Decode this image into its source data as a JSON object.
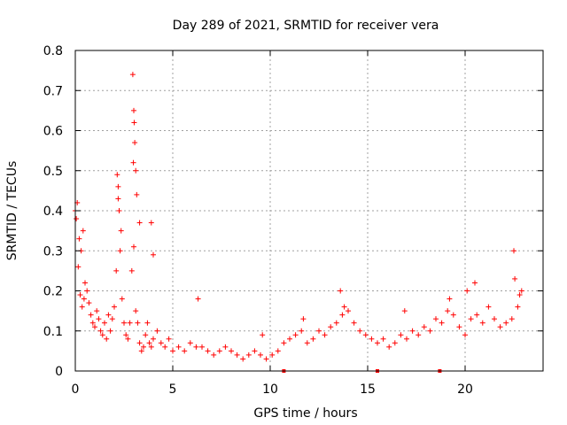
{
  "chart_data": {
    "type": "scatter",
    "title": "Day 289 of 2021, SRMTID for receiver vera",
    "xlabel": "GPS time / hours",
    "ylabel": "SRMTID / TECUs",
    "xlim": [
      0,
      24
    ],
    "ylim": [
      0,
      0.8
    ],
    "xticks": [
      0,
      5,
      10,
      15,
      20
    ],
    "xtick_labels": [
      "0",
      "5",
      "10",
      "15",
      "20"
    ],
    "yticks": [
      0,
      0.1,
      0.2,
      0.3,
      0.4,
      0.5,
      0.6,
      0.7,
      0.8
    ],
    "ytick_labels": [
      "0",
      "0.1",
      "0.2",
      "0.3",
      "0.4",
      "0.5",
      "0.6",
      "0.7",
      "0.8"
    ],
    "grid": true,
    "marker": "+",
    "color": "#ff0000",
    "series": [
      {
        "name": "SRMTID",
        "x": [
          0.0,
          0.1,
          0.2,
          0.3,
          0.4,
          0.5,
          0.6,
          0.7,
          0.8,
          0.9,
          1.0,
          1.1,
          1.2,
          1.3,
          1.4,
          1.5,
          1.6,
          1.7,
          1.8,
          1.9,
          2.0,
          2.1,
          2.2,
          2.3,
          2.4,
          2.5,
          2.6,
          2.7,
          2.8,
          2.9,
          3.0,
          3.1,
          3.2,
          3.3,
          3.4,
          3.5,
          3.6,
          3.7,
          3.8,
          3.9,
          4.0,
          4.2,
          4.4,
          4.6,
          4.8,
          5.0,
          5.3,
          5.6,
          5.9,
          6.2,
          6.5,
          6.8,
          7.1,
          7.4,
          7.7,
          8.0,
          8.3,
          8.6,
          8.9,
          9.2,
          9.5,
          9.8,
          10.1,
          10.4,
          10.7,
          11.0,
          11.3,
          11.6,
          11.9,
          12.2,
          12.5,
          12.8,
          13.1,
          13.4,
          13.7,
          14.0,
          14.3,
          14.6,
          14.9,
          15.2,
          15.5,
          15.8,
          16.1,
          16.4,
          16.7,
          17.0,
          17.3,
          17.6,
          17.9,
          18.2,
          18.5,
          18.8,
          19.1,
          19.4,
          19.7,
          20.0,
          20.3,
          20.6,
          20.9,
          21.2,
          21.5,
          21.8,
          22.1,
          22.4,
          22.7,
          22.9,
          0.05,
          0.15,
          0.25,
          0.35,
          0.45,
          2.15,
          2.2,
          2.25,
          2.35,
          2.95,
          3.0,
          3.05,
          3.1,
          2.98,
          3.02,
          3.15,
          3.3,
          3.9,
          4.0,
          6.3,
          9.6,
          11.7,
          13.6,
          13.8,
          16.9,
          19.2,
          20.1,
          20.5,
          22.5,
          22.8,
          22.55
        ],
        "y": [
          0.4,
          0.42,
          0.33,
          0.3,
          0.35,
          0.22,
          0.2,
          0.17,
          0.14,
          0.12,
          0.11,
          0.15,
          0.13,
          0.1,
          0.09,
          0.12,
          0.08,
          0.14,
          0.1,
          0.13,
          0.16,
          0.25,
          0.43,
          0.3,
          0.18,
          0.12,
          0.09,
          0.08,
          0.12,
          0.25,
          0.31,
          0.15,
          0.12,
          0.07,
          0.05,
          0.06,
          0.09,
          0.12,
          0.07,
          0.06,
          0.08,
          0.1,
          0.07,
          0.06,
          0.08,
          0.05,
          0.06,
          0.05,
          0.07,
          0.06,
          0.06,
          0.05,
          0.04,
          0.05,
          0.06,
          0.05,
          0.04,
          0.03,
          0.04,
          0.05,
          0.04,
          0.03,
          0.04,
          0.05,
          0.07,
          0.08,
          0.09,
          0.1,
          0.07,
          0.08,
          0.1,
          0.09,
          0.11,
          0.12,
          0.14,
          0.15,
          0.12,
          0.1,
          0.09,
          0.08,
          0.07,
          0.08,
          0.06,
          0.07,
          0.09,
          0.08,
          0.1,
          0.09,
          0.11,
          0.1,
          0.13,
          0.12,
          0.15,
          0.14,
          0.11,
          0.09,
          0.13,
          0.14,
          0.12,
          0.16,
          0.13,
          0.11,
          0.12,
          0.13,
          0.16,
          0.2,
          0.38,
          0.26,
          0.19,
          0.16,
          0.18,
          0.49,
          0.46,
          0.4,
          0.35,
          0.74,
          0.65,
          0.57,
          0.5,
          0.52,
          0.62,
          0.44,
          0.37,
          0.37,
          0.29,
          0.18,
          0.09,
          0.13,
          0.2,
          0.16,
          0.15,
          0.18,
          0.2,
          0.22,
          0.3,
          0.19,
          0.23
        ]
      }
    ],
    "x_axis_markers": [
      10.7,
      15.5,
      18.7
    ]
  }
}
